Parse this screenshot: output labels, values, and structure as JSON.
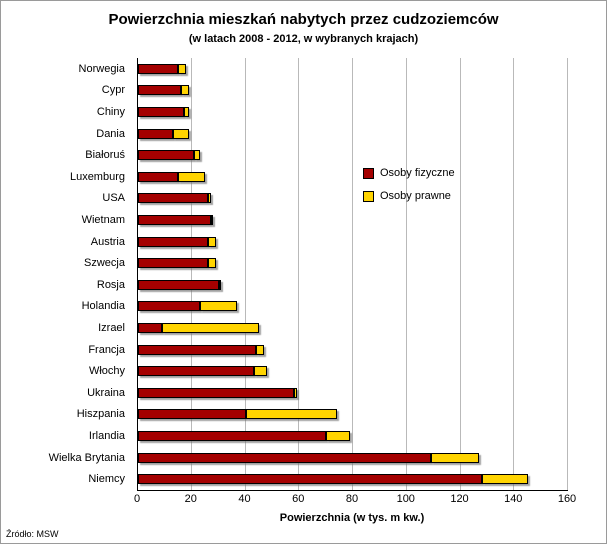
{
  "title": "Powierzchnia mieszkań nabytych przez cudzoziemców",
  "subtitle": "(w latach 2008 - 2012,  w wybranych krajach)",
  "source": "Źródło: MSW",
  "colors": {
    "fizyczne": "#a40000",
    "prawne": "#ffd400",
    "gridline": "#b9b9b9"
  },
  "chart_data": {
    "type": "bar",
    "orientation": "horizontal",
    "stacked": true,
    "title": "Powierzchnia mieszkań nabytych przez cudzoziemców",
    "subtitle": "(w latach 2008 - 2012,  w wybranych krajach)",
    "xlabel": "Powierzchnia (w tys. m kw.)",
    "ylabel": "",
    "xlim": [
      0,
      160
    ],
    "xticks": [
      0,
      20,
      40,
      60,
      80,
      100,
      120,
      140,
      160
    ],
    "grid": true,
    "legend_position": "center-right",
    "categories_top_to_bottom": [
      "Norwegia",
      "Cypr",
      "Chiny",
      "Dania",
      "Białoruś",
      "Luxemburg",
      "USA",
      "Wietnam",
      "Austria",
      "Szwecja",
      "Rosja",
      "Holandia",
      "Izrael",
      "Francja",
      "Włochy",
      "Ukraina",
      "Hiszpania",
      "Irlandia",
      "Wielka Brytania",
      "Niemcy"
    ],
    "series": [
      {
        "name": "Osoby fizyczne",
        "color": "#a40000",
        "values": [
          15,
          16,
          17,
          13,
          21,
          15,
          26,
          27,
          26,
          26,
          30,
          23,
          9,
          44,
          43,
          58,
          40,
          70,
          109,
          128
        ]
      },
      {
        "name": "Osoby prawne",
        "color": "#ffd400",
        "values": [
          3,
          3,
          2,
          6,
          2,
          10,
          1,
          1,
          3,
          3,
          1,
          14,
          36,
          3,
          5,
          1,
          34,
          9,
          18,
          17
        ]
      }
    ]
  }
}
